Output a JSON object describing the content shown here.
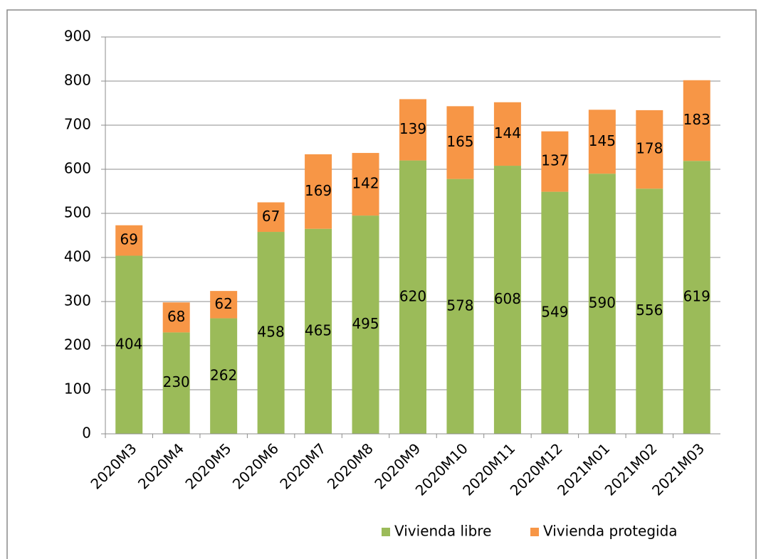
{
  "chart_data": {
    "type": "stacked_bar",
    "categories": [
      "2020M3",
      "2020M4",
      "2020M5",
      "2020M6",
      "2020M7",
      "2020M8",
      "2020M9",
      "2020M10",
      "2020M11",
      "2020M12",
      "2021M01",
      "2021M02",
      "2021M03"
    ],
    "series": [
      {
        "name": "Vivienda libre",
        "color": "#9bbb59",
        "values": [
          404,
          230,
          262,
          458,
          465,
          495,
          620,
          578,
          608,
          549,
          590,
          556,
          619
        ]
      },
      {
        "name": "Vivienda protegida",
        "color": "#f79646",
        "values": [
          69,
          68,
          62,
          67,
          169,
          142,
          139,
          165,
          144,
          137,
          145,
          178,
          183
        ]
      }
    ],
    "ylim": [
      0,
      900
    ],
    "yticks": [
      0,
      100,
      200,
      300,
      400,
      500,
      600,
      700,
      800,
      900
    ],
    "grid": true,
    "legend": "bottom"
  }
}
